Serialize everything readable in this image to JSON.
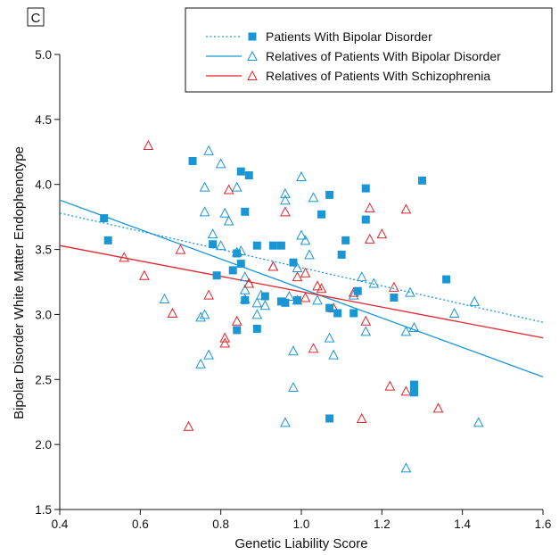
{
  "panel_label": "C",
  "chart_data": {
    "type": "scatter",
    "xlabel": "Genetic Liability Score",
    "ylabel": "Bipolar Disorder White Matter Endophenotype",
    "xlim": [
      0.4,
      1.6
    ],
    "ylim": [
      1.5,
      5.0
    ],
    "xticks": [
      "0.4",
      "0.6",
      "0.8",
      "1.0",
      "1.2",
      "1.4",
      "1.6"
    ],
    "yticks": [
      "1.5",
      "2.0",
      "2.5",
      "3.0",
      "3.5",
      "4.0",
      "4.5",
      "5.0"
    ],
    "legend_position": "top-right",
    "grid": false,
    "series": [
      {
        "name": "Patients With Bipolar Disorder",
        "marker": "square-filled",
        "line": "dotted",
        "color": "#1a96d4",
        "fit": [
          [
            0.4,
            3.78
          ],
          [
            1.6,
            2.94
          ]
        ],
        "points": [
          [
            0.51,
            3.74
          ],
          [
            0.52,
            3.57
          ],
          [
            0.73,
            4.18
          ],
          [
            0.78,
            3.54
          ],
          [
            0.79,
            3.3
          ],
          [
            0.83,
            3.34
          ],
          [
            0.84,
            3.47
          ],
          [
            0.84,
            2.88
          ],
          [
            0.85,
            3.39
          ],
          [
            0.85,
            4.1
          ],
          [
            0.86,
            3.79
          ],
          [
            0.86,
            3.11
          ],
          [
            0.87,
            4.07
          ],
          [
            0.89,
            3.53
          ],
          [
            0.89,
            2.89
          ],
          [
            0.91,
            3.14
          ],
          [
            0.93,
            3.53
          ],
          [
            0.95,
            3.53
          ],
          [
            0.95,
            3.1
          ],
          [
            0.96,
            3.09
          ],
          [
            0.98,
            3.4
          ],
          [
            0.99,
            3.11
          ],
          [
            1.05,
            3.77
          ],
          [
            1.07,
            3.92
          ],
          [
            1.07,
            3.05
          ],
          [
            1.07,
            2.2
          ],
          [
            1.09,
            3.01
          ],
          [
            1.11,
            3.57
          ],
          [
            1.1,
            3.46
          ],
          [
            1.13,
            3.01
          ],
          [
            1.14,
            3.18
          ],
          [
            1.16,
            3.97
          ],
          [
            1.16,
            3.73
          ],
          [
            1.23,
            3.13
          ],
          [
            1.28,
            2.46
          ],
          [
            1.28,
            2.43
          ],
          [
            1.28,
            2.4
          ],
          [
            1.3,
            4.03
          ],
          [
            1.36,
            3.27
          ]
        ]
      },
      {
        "name": "Relatives of Patients With Bipolar Disorder",
        "marker": "triangle-open",
        "line": "solid",
        "color": "#1a96d4",
        "fit": [
          [
            0.4,
            3.88
          ],
          [
            1.6,
            2.52
          ]
        ],
        "points": [
          [
            0.66,
            3.12
          ],
          [
            0.75,
            2.62
          ],
          [
            0.75,
            2.98
          ],
          [
            0.76,
            3.0
          ],
          [
            0.76,
            3.79
          ],
          [
            0.76,
            3.98
          ],
          [
            0.77,
            4.26
          ],
          [
            0.77,
            2.69
          ],
          [
            0.78,
            3.62
          ],
          [
            0.8,
            4.16
          ],
          [
            0.8,
            3.53
          ],
          [
            0.81,
            3.78
          ],
          [
            0.82,
            3.72
          ],
          [
            0.84,
            3.48
          ],
          [
            0.84,
            3.98
          ],
          [
            0.85,
            3.49
          ],
          [
            0.86,
            3.29
          ],
          [
            0.86,
            3.19
          ],
          [
            0.86,
            3.12
          ],
          [
            0.87,
            3.24
          ],
          [
            0.89,
            3.0
          ],
          [
            0.89,
            3.09
          ],
          [
            0.9,
            3.15
          ],
          [
            0.91,
            3.07
          ],
          [
            0.93,
            3.37
          ],
          [
            0.96,
            3.88
          ],
          [
            0.96,
            3.93
          ],
          [
            0.96,
            2.17
          ],
          [
            0.97,
            3.14
          ],
          [
            0.98,
            2.72
          ],
          [
            0.98,
            2.44
          ],
          [
            0.99,
            3.36
          ],
          [
            0.99,
            3.11
          ],
          [
            1.0,
            4.06
          ],
          [
            1.0,
            3.61
          ],
          [
            1.01,
            3.57
          ],
          [
            1.02,
            3.46
          ],
          [
            1.03,
            3.9
          ],
          [
            1.04,
            3.11
          ],
          [
            1.07,
            2.82
          ],
          [
            1.08,
            2.69
          ],
          [
            1.13,
            3.15
          ],
          [
            1.15,
            3.29
          ],
          [
            1.16,
            2.87
          ],
          [
            1.18,
            3.24
          ],
          [
            1.26,
            2.87
          ],
          [
            1.26,
            1.82
          ],
          [
            1.27,
            3.17
          ],
          [
            1.28,
            2.9
          ],
          [
            1.38,
            3.01
          ],
          [
            1.43,
            3.1
          ],
          [
            1.44,
            2.17
          ]
        ]
      },
      {
        "name": "Relatives of Patients With Schizophrenia",
        "marker": "triangle-open",
        "line": "solid",
        "color": "#e0242b",
        "fit": [
          [
            0.4,
            3.53
          ],
          [
            1.6,
            2.82
          ]
        ],
        "points": [
          [
            0.56,
            3.44
          ],
          [
            0.61,
            3.3
          ],
          [
            0.62,
            4.3
          ],
          [
            0.68,
            3.01
          ],
          [
            0.7,
            3.5
          ],
          [
            0.72,
            2.14
          ],
          [
            0.77,
            3.15
          ],
          [
            0.81,
            2.78
          ],
          [
            0.81,
            2.82
          ],
          [
            0.82,
            3.96
          ],
          [
            0.84,
            2.95
          ],
          [
            0.87,
            3.24
          ],
          [
            0.93,
            3.37
          ],
          [
            0.96,
            3.79
          ],
          [
            0.99,
            3.29
          ],
          [
            1.01,
            3.32
          ],
          [
            1.01,
            3.13
          ],
          [
            1.03,
            2.74
          ],
          [
            1.04,
            3.22
          ],
          [
            1.05,
            3.2
          ],
          [
            1.08,
            3.05
          ],
          [
            1.13,
            3.17
          ],
          [
            1.15,
            2.2
          ],
          [
            1.16,
            2.95
          ],
          [
            1.17,
            3.82
          ],
          [
            1.17,
            3.58
          ],
          [
            1.2,
            3.62
          ],
          [
            1.22,
            2.45
          ],
          [
            1.23,
            3.21
          ],
          [
            1.26,
            2.41
          ],
          [
            1.26,
            3.81
          ],
          [
            1.34,
            2.28
          ]
        ]
      }
    ]
  }
}
